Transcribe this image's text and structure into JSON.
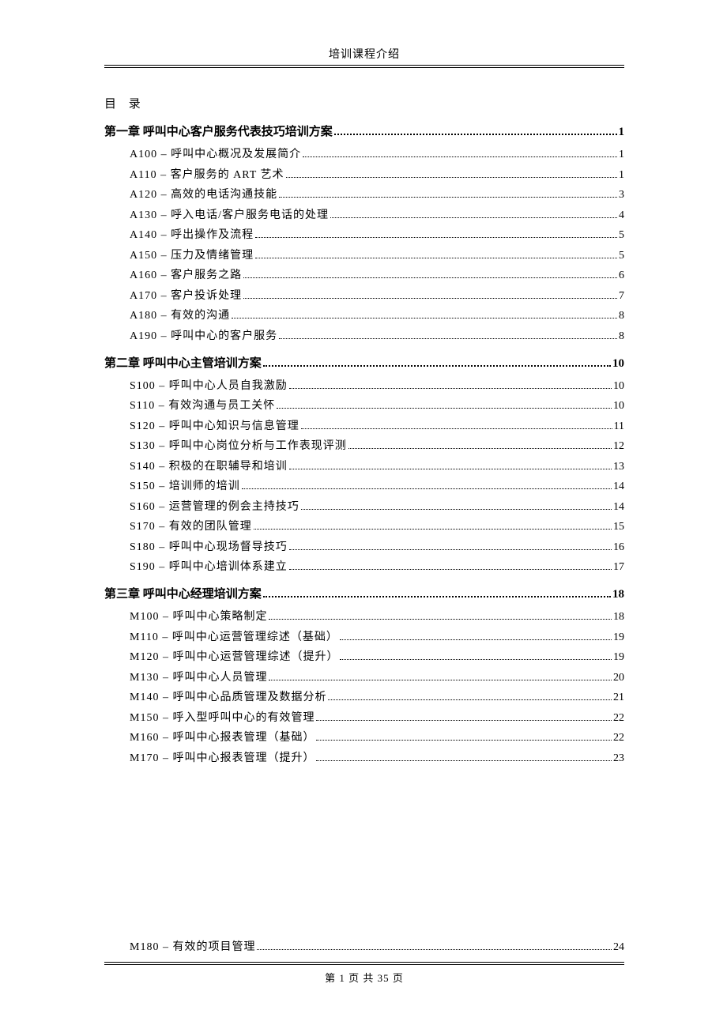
{
  "header": {
    "title": "培训课程介绍"
  },
  "toc_heading": "目  录",
  "chapters": [
    {
      "title": "第一章 呼叫中心客户服务代表技巧培训方案",
      "page": "1",
      "entries": [
        {
          "label": "A100 – 呼叫中心概况及发展简介",
          "page": "1"
        },
        {
          "label": "A110 – 客户服务的 ART 艺术",
          "page": "1"
        },
        {
          "label": "A120 – 高效的电话沟通技能",
          "page": "3"
        },
        {
          "label": "A130 – 呼入电话/客户服务电话的处理",
          "page": "4"
        },
        {
          "label": "A140 – 呼出操作及流程",
          "page": "5"
        },
        {
          "label": "A150 – 压力及情绪管理",
          "page": "5"
        },
        {
          "label": "A160 – 客户服务之路",
          "page": "6"
        },
        {
          "label": "A170 – 客户投诉处理",
          "page": "7"
        },
        {
          "label": "A180 – 有效的沟通",
          "page": "8"
        },
        {
          "label": "A190 – 呼叫中心的客户服务",
          "page": "8"
        }
      ]
    },
    {
      "title": "第二章 呼叫中心主管培训方案",
      "page": "10",
      "entries": [
        {
          "label": "S100 – 呼叫中心人员自我激励",
          "page": "10"
        },
        {
          "label": "S110 – 有效沟通与员工关怀",
          "page": "10"
        },
        {
          "label": "S120 – 呼叫中心知识与信息管理",
          "page": "11"
        },
        {
          "label": "S130 – 呼叫中心岗位分析与工作表现评测",
          "page": "12"
        },
        {
          "label": "S140 – 积极的在职辅导和培训",
          "page": "13"
        },
        {
          "label": "S150 – 培训师的培训",
          "page": "14"
        },
        {
          "label": "S160 – 运营管理的例会主持技巧",
          "page": "14"
        },
        {
          "label": "S170 – 有效的团队管理",
          "page": "15"
        },
        {
          "label": "S180 – 呼叫中心现场督导技巧",
          "page": "16"
        },
        {
          "label": "S190 – 呼叫中心培训体系建立",
          "page": "17"
        }
      ]
    },
    {
      "title": "第三章 呼叫中心经理培训方案",
      "page": "18",
      "entries": [
        {
          "label": "M100 – 呼叫中心策略制定",
          "page": "18"
        },
        {
          "label": "M110 – 呼叫中心运营管理综述（基础）",
          "page": "19"
        },
        {
          "label": "M120 – 呼叫中心运营管理综述（提升）",
          "page": "19"
        },
        {
          "label": "M130 – 呼叫中心人员管理",
          "page": "20"
        },
        {
          "label": "M140 – 呼叫中心品质管理及数据分析",
          "page": "21"
        },
        {
          "label": "M150 – 呼入型呼叫中心的有效管理",
          "page": "22"
        },
        {
          "label": "M160 – 呼叫中心报表管理（基础）",
          "page": "22"
        },
        {
          "label": "M170 – 呼叫中心报表管理（提升）",
          "page": "23"
        }
      ]
    }
  ],
  "trailing_entry": {
    "label": "M180 – 有效的项目管理",
    "page": "24"
  },
  "footer": {
    "text": "第 1 页 共 35 页"
  }
}
